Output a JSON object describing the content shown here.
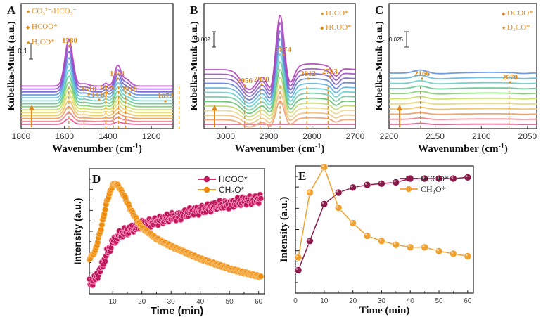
{
  "figure": {
    "panels": [
      "A",
      "B",
      "C",
      "D",
      "E"
    ]
  },
  "chart_data": [
    {
      "panel": "A",
      "type": "line",
      "title": "",
      "xlabel": "Wavenumber (cm⁻¹)",
      "ylabel": "Kubelka-Munk (a.u.)",
      "xlim": [
        1800,
        1100
      ],
      "x_ticks": [
        1800,
        1600,
        1400,
        1200
      ],
      "scale_bar_label": "0.1",
      "legend": [
        {
          "label": "CO₃²⁻/HCO₃⁻",
          "marker": "star"
        },
        {
          "label": "HCOO*",
          "marker": "diamond"
        },
        {
          "label": "H₃CO*",
          "marker": "star"
        }
      ],
      "peaks": [
        {
          "x": 1580,
          "label": "1580"
        },
        {
          "x": 1510,
          "label": "1510"
        },
        {
          "x": 1410,
          "label": "1410"
        },
        {
          "x": 1375,
          "label": "1375"
        },
        {
          "x": 1351,
          "label": "1351"
        },
        {
          "x": 1318,
          "label": "1318"
        },
        {
          "x": 1072,
          "label": "1072"
        }
      ],
      "series_count": 14,
      "arrow": "increasing time (bottom to top)"
    },
    {
      "panel": "B",
      "type": "line",
      "title": "",
      "xlabel": "Wavenumber (cm⁻¹)",
      "ylabel": "Kubelka-Munk (a.u.)",
      "xlim": [
        3050,
        2700
      ],
      "x_ticks": [
        3000,
        2900,
        2800,
        2700
      ],
      "scale_bar_label": "0.002",
      "legend": [
        {
          "label": "H₃CO*",
          "marker": "star"
        },
        {
          "label": "HCOO*",
          "marker": "diamond"
        }
      ],
      "peaks": [
        {
          "x": 2956,
          "label": "2956"
        },
        {
          "x": 2920,
          "label": "2920"
        },
        {
          "x": 2874,
          "label": "2874"
        },
        {
          "x": 2812,
          "label": "2812"
        },
        {
          "x": 2763,
          "label": "2763"
        }
      ],
      "series_count": 13,
      "arrow": "increasing time (bottom to top)"
    },
    {
      "panel": "C",
      "type": "line",
      "title": "",
      "xlabel": "Wavenumber (cm⁻¹)",
      "ylabel": "Kubelka-Munk (a.u.)",
      "xlim": [
        2200,
        2040
      ],
      "x_ticks": [
        2200,
        2150,
        2100,
        2050
      ],
      "scale_bar_label": "0.025",
      "legend": [
        {
          "label": "DCOO*",
          "marker": "diamond"
        },
        {
          "label": "D₂CO*",
          "marker": "star"
        }
      ],
      "peaks": [
        {
          "x": 2166,
          "label": "2166"
        },
        {
          "x": 2070,
          "label": "2070"
        }
      ],
      "series_count": 11,
      "arrow": "increasing time (bottom to top)"
    },
    {
      "panel": "D",
      "type": "scatter",
      "title": "",
      "xlabel": "Time (min)",
      "ylabel": "Intensity (a.u.)",
      "xlim": [
        2,
        62
      ],
      "ylim": [
        0,
        1
      ],
      "x_ticks": [
        10,
        20,
        30,
        40,
        50,
        60
      ],
      "series": [
        {
          "name": "HCOO*",
          "color": "#c2185b",
          "x": [
            2,
            4,
            6,
            8,
            10,
            12,
            14,
            16,
            18,
            20,
            25,
            30,
            35,
            40,
            45,
            50,
            55,
            60,
            61
          ],
          "values": [
            0.08,
            0.12,
            0.2,
            0.32,
            0.41,
            0.46,
            0.49,
            0.51,
            0.53,
            0.55,
            0.58,
            0.61,
            0.64,
            0.67,
            0.7,
            0.72,
            0.74,
            0.76,
            0.76
          ]
        },
        {
          "name": "CH₃O*",
          "color": "#f08a0a",
          "x": [
            2,
            4,
            6,
            8,
            10,
            11,
            12,
            14,
            16,
            18,
            20,
            25,
            30,
            35,
            40,
            45,
            50,
            55,
            60,
            61
          ],
          "values": [
            0.28,
            0.34,
            0.52,
            0.74,
            0.87,
            0.88,
            0.86,
            0.78,
            0.68,
            0.6,
            0.53,
            0.44,
            0.38,
            0.33,
            0.28,
            0.24,
            0.2,
            0.17,
            0.14,
            0.13
          ]
        }
      ],
      "legend_position": "top-right"
    },
    {
      "panel": "E",
      "type": "line",
      "title": "",
      "xlabel": "Time (min)",
      "ylabel": "Intensity (a.u.)",
      "xlim": [
        0,
        62
      ],
      "ylim": [
        0,
        1
      ],
      "x_ticks": [
        0,
        10,
        20,
        30,
        40,
        50,
        60
      ],
      "series": [
        {
          "name": "HCOO*",
          "color": "#8b1a4a",
          "x": [
            1,
            5,
            10,
            15,
            20,
            25,
            30,
            35,
            40,
            45,
            50,
            55,
            60
          ],
          "values": [
            0.18,
            0.41,
            0.7,
            0.79,
            0.83,
            0.85,
            0.86,
            0.87,
            0.9,
            0.9,
            0.9,
            0.9,
            0.91
          ]
        },
        {
          "name": "CH₃O*",
          "color": "#f0a030",
          "x": [
            1,
            5,
            10,
            15,
            20,
            25,
            30,
            35,
            40,
            45,
            50,
            55,
            60
          ],
          "values": [
            0.28,
            0.79,
            0.99,
            0.67,
            0.55,
            0.45,
            0.41,
            0.38,
            0.36,
            0.36,
            0.33,
            0.31,
            0.29
          ]
        }
      ],
      "legend_position": "top-right"
    }
  ]
}
